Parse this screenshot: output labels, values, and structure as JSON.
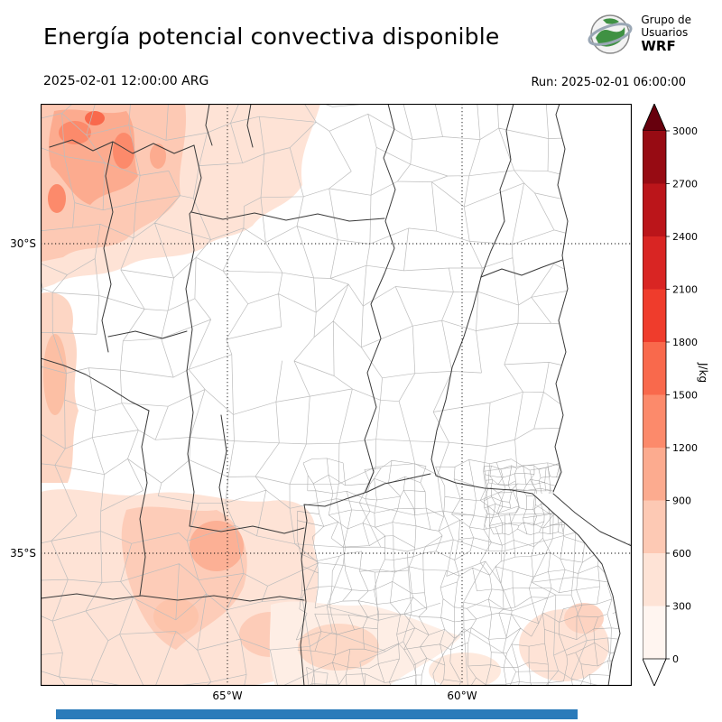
{
  "header": {
    "title": "Energía potencial convectiva disponible",
    "logo": {
      "line1": "Grupo de",
      "line2": "Usuarios",
      "line3": "WRF"
    }
  },
  "times": {
    "valid": "2025-02-01 12:00:00 ARG",
    "run": "Run: 2025-02-01 06:00:00"
  },
  "map": {
    "lat_ticks": [
      {
        "label": "30°S"
      },
      {
        "label": "35°S"
      }
    ],
    "lon_ticks": [
      {
        "label": "65°W"
      },
      {
        "label": "60°W"
      }
    ]
  },
  "colorbar": {
    "unit": "J/kg",
    "tick_labels": [
      "3000",
      "2700",
      "2400",
      "2100",
      "1800",
      "1500",
      "1200",
      "900",
      "600",
      "300",
      "0"
    ],
    "segment_colors_top_to_bottom": [
      "#970b13",
      "#bb151a",
      "#d92523",
      "#ef3c2c",
      "#f9694c",
      "#fc8a6b",
      "#fcab8f",
      "#fdc9b4",
      "#fee3d6",
      "#fff5f0"
    ],
    "over_color": "#67000d",
    "under_color": "#ffffff"
  },
  "footer": {
    "bar_color": "#2b7bba"
  }
}
